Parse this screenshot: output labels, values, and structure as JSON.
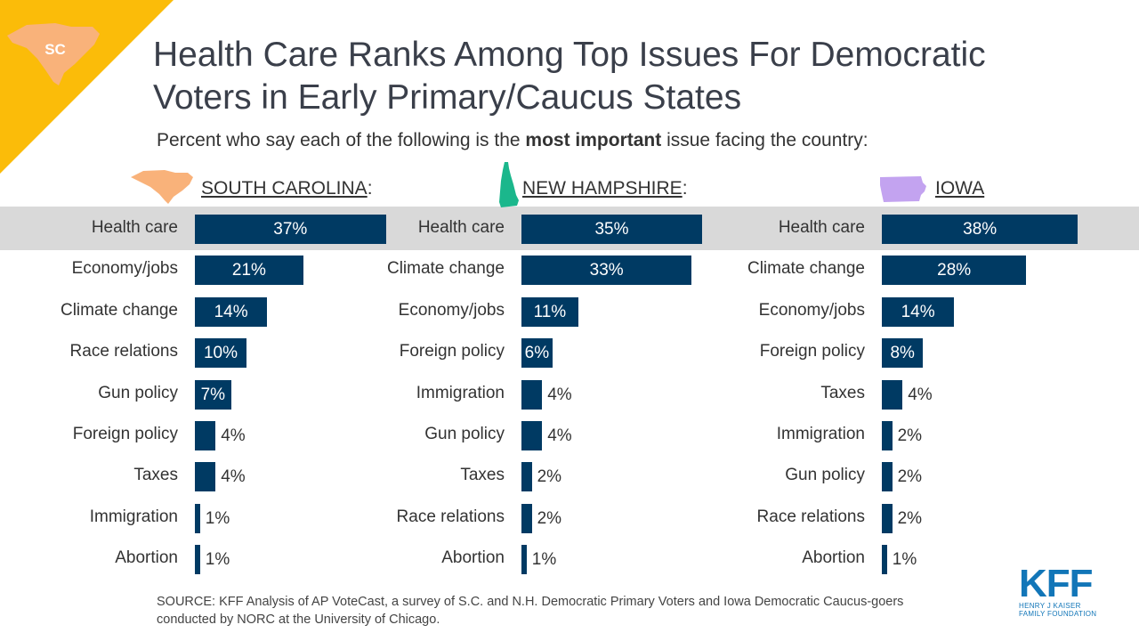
{
  "corner_badge": {
    "text": "SC"
  },
  "title_lines": [
    "Health Care Ranks Among Top Issues For Democratic",
    "Voters in Early Primary/Caucus States"
  ],
  "subtitle": {
    "pre": "Percent who say each of the following is the ",
    "bold": "most important",
    "post": " issue facing the country:"
  },
  "colors": {
    "bar": "#003a63",
    "highlight": "#d9d9d9",
    "corner": "#fbbc09",
    "south_carolina": "#f9b27a",
    "new_hampshire": "#1bb78c",
    "iowa": "#c3a3f0",
    "kff_blue": "#1276b8"
  },
  "chart_data": [
    {
      "type": "bar",
      "title": "SOUTH CAROLINA",
      "title_suffix": ":",
      "categories": [
        "Health care",
        "Economy/jobs",
        "Climate change",
        "Race relations",
        "Gun policy",
        "Foreign policy",
        "Taxes",
        "Immigration",
        "Abortion"
      ],
      "values": [
        37,
        21,
        14,
        10,
        7,
        4,
        4,
        1,
        1
      ],
      "value_labels": [
        "37%",
        "21%",
        "14%",
        "10%",
        "7%",
        "4%",
        "4%",
        "1%",
        "1%"
      ],
      "unit": "%"
    },
    {
      "type": "bar",
      "title": "NEW HAMPSHIRE",
      "title_suffix": ":",
      "categories": [
        "Health care",
        "Climate change",
        "Economy/jobs",
        "Foreign policy",
        "Immigration",
        "Gun policy",
        "Taxes",
        "Race relations",
        "Abortion"
      ],
      "values": [
        35,
        33,
        11,
        6,
        4,
        4,
        2,
        2,
        1
      ],
      "value_labels": [
        "35%",
        "33%",
        "11%",
        "6%",
        "4%",
        "4%",
        "2%",
        "2%",
        "1%"
      ],
      "unit": "%"
    },
    {
      "type": "bar",
      "title": "IOWA",
      "title_suffix": "",
      "categories": [
        "Health care",
        "Climate change",
        "Economy/jobs",
        "Foreign policy",
        "Taxes",
        "Immigration",
        "Gun policy",
        "Race relations",
        "Abortion"
      ],
      "values": [
        38,
        28,
        14,
        8,
        4,
        2,
        2,
        2,
        1
      ],
      "value_labels": [
        "38%",
        "28%",
        "14%",
        "8%",
        "4%",
        "2%",
        "2%",
        "2%",
        "1%"
      ],
      "unit": "%"
    }
  ],
  "source": {
    "line1": "SOURCE: KFF Analysis of AP VoteCast, a survey of S.C. and N.H. Democratic Primary Voters and Iowa Democratic Caucus-goers",
    "line2": "conducted by NORC at the University of Chicago."
  },
  "logo": {
    "text": "KFF",
    "line1": "HENRY J KAISER",
    "line2": "FAMILY FOUNDATION"
  }
}
